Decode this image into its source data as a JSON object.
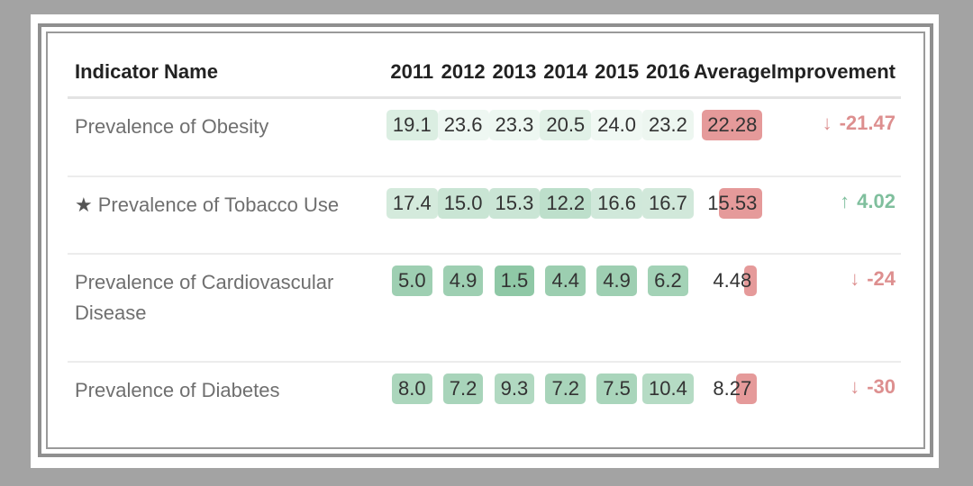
{
  "chart_data": {
    "type": "table",
    "columns": [
      "Indicator Name",
      "2011",
      "2012",
      "2013",
      "2014",
      "2015",
      "2016",
      "Average",
      "Improvement"
    ],
    "rows": [
      {
        "name": "Prevalence of Obesity",
        "starred": false,
        "values": [
          "19.1",
          "23.6",
          "23.3",
          "20.5",
          "24.0",
          "23.2"
        ],
        "average": "22.28",
        "average_fill": 1.0,
        "improvement": "-21.47",
        "direction": "down"
      },
      {
        "name": "Prevalence of Tobacco Use",
        "starred": true,
        "values": [
          "17.4",
          "15.0",
          "15.3",
          "12.2",
          "16.6",
          "16.7"
        ],
        "average": "15.53",
        "average_fill": 0.7,
        "improvement": "4.02",
        "direction": "up"
      },
      {
        "name": "Prevalence of Cardiovascular Disease",
        "starred": false,
        "values": [
          "5.0",
          "4.9",
          "1.5",
          "4.4",
          "4.9",
          "6.2"
        ],
        "average": "4.48",
        "average_fill": 0.2,
        "improvement": "-24",
        "direction": "down"
      },
      {
        "name": "Prevalence of Diabetes",
        "starred": false,
        "values": [
          "8.0",
          "7.2",
          "9.3",
          "7.2",
          "7.5",
          "10.4"
        ],
        "average": "8.27",
        "average_fill": 0.37,
        "improvement": "-30",
        "direction": "down"
      }
    ],
    "cell_colors": {
      "low": "#f0f8f3",
      "high": "#8fc8a6",
      "average": "#e59a9a",
      "improve_up": "#7fbf9d",
      "improve_down": "#dd8f8f"
    }
  }
}
